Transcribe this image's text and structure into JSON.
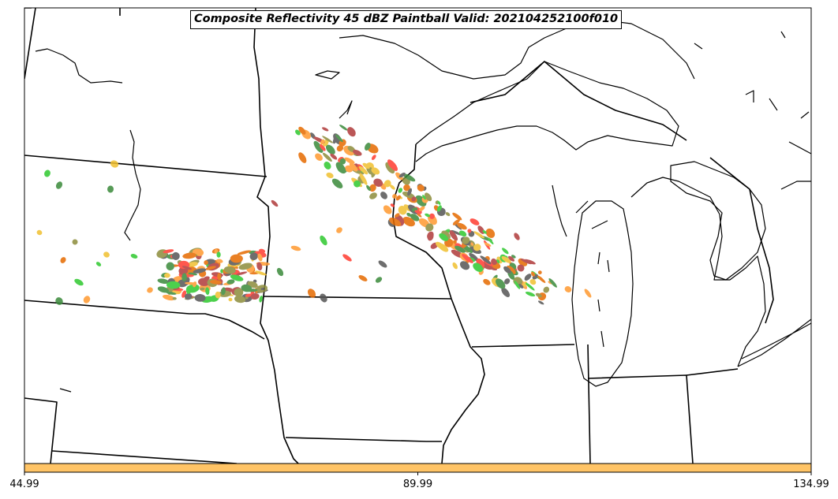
{
  "title": "Composite Reflectivity 45 dBZ Paintball Valid: 202104252100f010",
  "colorbar": {
    "color": "#ffc466",
    "ticks": [
      "44.99",
      "89.99",
      "134.99"
    ]
  },
  "paintball_colors": [
    "#ff3b30",
    "#ff9a30",
    "#2ec82e",
    "#3a8a3a",
    "#555555",
    "#b03a3a",
    "#8c8c3c",
    "#e66a00",
    "#f0c030"
  ]
}
